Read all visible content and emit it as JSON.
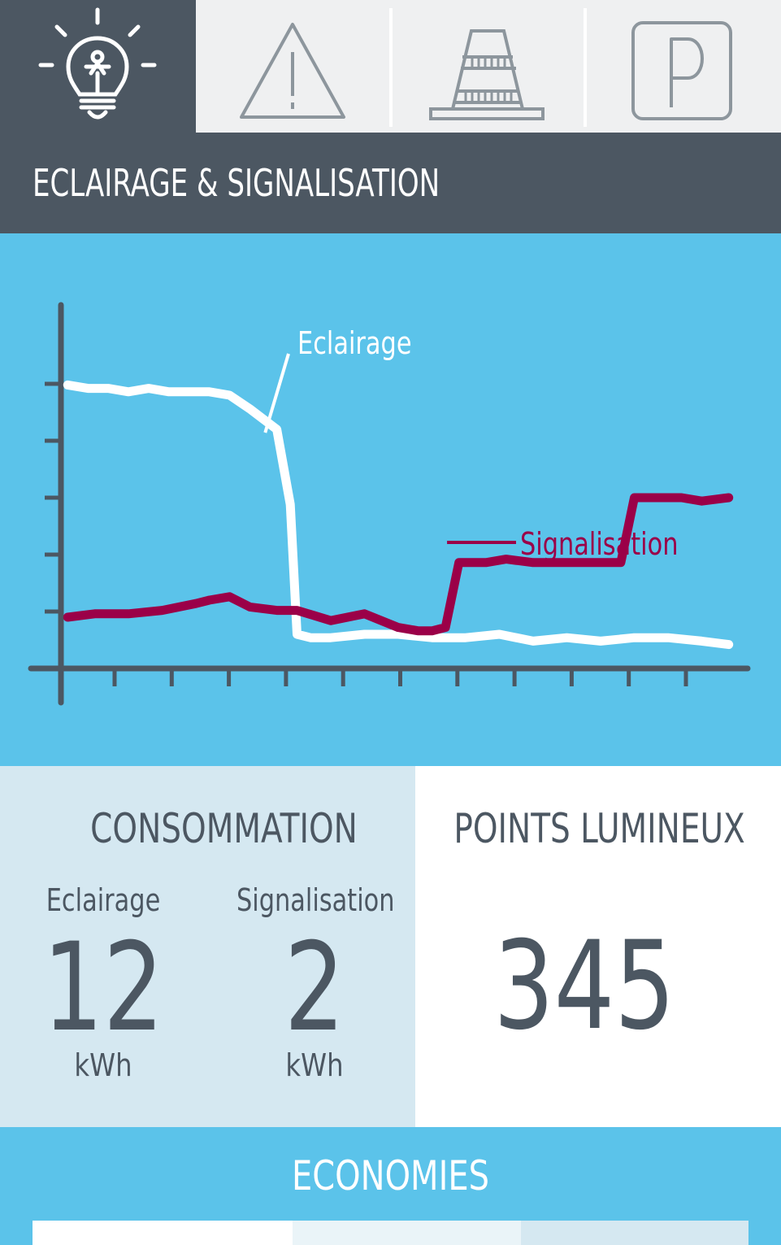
{
  "tabs": [
    {
      "icon": "lightbulb-icon",
      "active": true
    },
    {
      "icon": "warning-triangle-icon",
      "active": false
    },
    {
      "icon": "traffic-cone-icon",
      "active": false
    },
    {
      "icon": "parking-sign-icon",
      "active": false
    }
  ],
  "header": {
    "title": "ECLAIRAGE & SIGNALISATION"
  },
  "chart_data": {
    "type": "line",
    "title": "",
    "xlabel": "",
    "ylabel": "",
    "x_ticks": 11,
    "y_ticks": 5,
    "grid": false,
    "legend": "inline annotations",
    "xlim": [
      0,
      100
    ],
    "ylim": [
      0,
      100
    ],
    "series": [
      {
        "name": "Eclairage",
        "color": "#ffffff",
        "x": [
          1,
          4,
          7,
          10,
          13,
          16,
          19,
          22,
          25,
          28,
          32,
          34,
          35,
          37,
          38,
          40,
          45,
          50,
          55,
          60,
          65,
          70,
          75,
          80,
          85,
          90,
          95,
          99
        ],
        "y": [
          83,
          82,
          82,
          81,
          82,
          81,
          81,
          81,
          80,
          76,
          70,
          48,
          10,
          9,
          9,
          9,
          10,
          10,
          9,
          9,
          10,
          8,
          9,
          8,
          9,
          9,
          8,
          7
        ]
      },
      {
        "name": "Signalisation",
        "color": "#9b0048",
        "x": [
          1,
          5,
          10,
          15,
          20,
          22,
          25,
          28,
          32,
          35,
          40,
          45,
          50,
          53,
          55,
          57,
          59,
          63,
          66,
          70,
          75,
          80,
          83,
          85,
          86,
          89,
          92,
          95,
          99
        ],
        "y": [
          15,
          16,
          16,
          17,
          19,
          20,
          21,
          18,
          17,
          17,
          14,
          16,
          12,
          11,
          11,
          12,
          31,
          31,
          32,
          31,
          31,
          31,
          31,
          50,
          50,
          50,
          50,
          49,
          50
        ]
      }
    ]
  },
  "consumption": {
    "title": "CONSOMMATION",
    "eclairage_label": "Eclairage",
    "eclairage_value": "12",
    "eclairage_unit": "kWh",
    "signalisation_label": "Signalisation",
    "signalisation_value": "2",
    "signalisation_unit": "kWh"
  },
  "points": {
    "title": "POINTS LUMINEUX",
    "value": "345"
  },
  "economies": {
    "title": "ECONOMIES"
  },
  "colors": {
    "dark": "#4c5762",
    "blue": "#5bc3ea",
    "light": "#d5e8f1",
    "accent": "#9b0048"
  }
}
